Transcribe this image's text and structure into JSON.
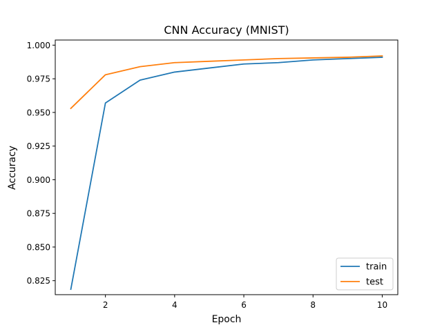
{
  "chart_data": {
    "type": "line",
    "title": "CNN Accuracy (MNIST)",
    "xlabel": "Epoch",
    "ylabel": "Accuracy",
    "xlim": [
      0.55,
      10.45
    ],
    "ylim": [
      0.8146,
      1.0038
    ],
    "xticks": [
      2,
      4,
      6,
      8,
      10
    ],
    "yticks": [
      0.825,
      0.85,
      0.875,
      0.9,
      0.925,
      0.95,
      0.975,
      1.0
    ],
    "yticklabels": [
      "0.825",
      "0.850",
      "0.875",
      "0.900",
      "0.925",
      "0.950",
      "0.975",
      "1.000"
    ],
    "grid": false,
    "legend_position": "lower-right",
    "x": [
      1,
      2,
      3,
      4,
      5,
      6,
      7,
      8,
      9,
      10
    ],
    "series": [
      {
        "name": "train",
        "color": "#1f77b4",
        "values": [
          0.8186,
          0.957,
          0.974,
          0.98,
          0.983,
          0.986,
          0.987,
          0.989,
          0.99,
          0.991
        ]
      },
      {
        "name": "test",
        "color": "#ff7f0e",
        "values": [
          0.953,
          0.978,
          0.984,
          0.987,
          0.988,
          0.989,
          0.99,
          0.9905,
          0.991,
          0.992
        ]
      }
    ]
  }
}
